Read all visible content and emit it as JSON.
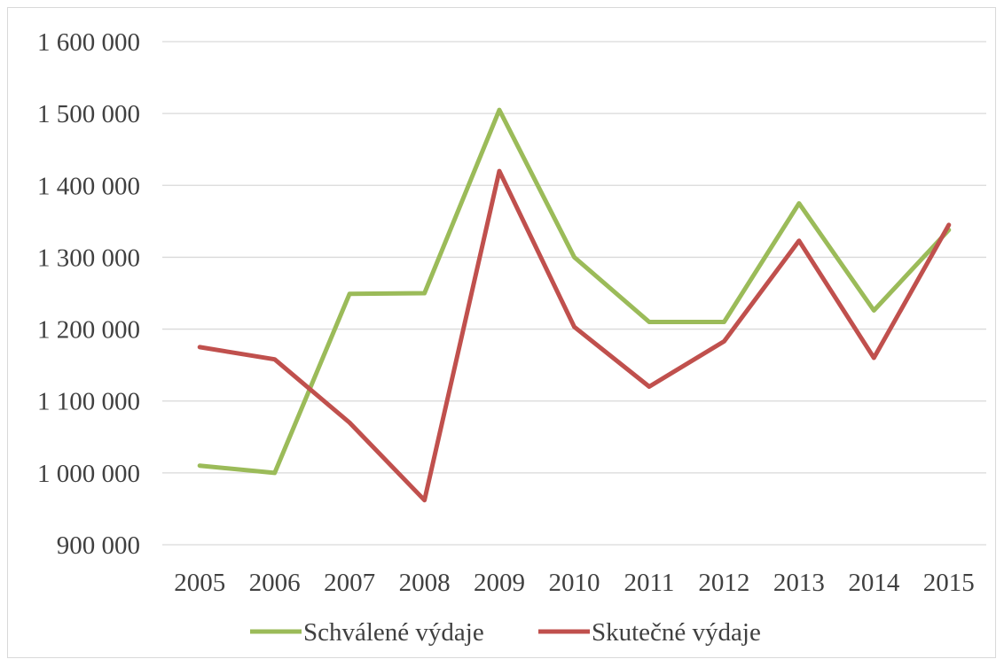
{
  "chart_data": {
    "type": "line",
    "categories": [
      "2005",
      "2006",
      "2007",
      "2008",
      "2009",
      "2010",
      "2011",
      "2012",
      "2013",
      "2014",
      "2015"
    ],
    "ylim": [
      900000,
      1600000
    ],
    "y_ticks": [
      900000,
      1000000,
      1100000,
      1200000,
      1300000,
      1400000,
      1500000,
      1600000
    ],
    "y_tick_labels": [
      "900 000",
      "1 000 000",
      "1 100 000",
      "1 200 000",
      "1 300 000",
      "1 400 000",
      "1 500 000",
      "1 600 000"
    ],
    "grid": "horizontal",
    "legend_position": "bottom",
    "series": [
      {
        "name": "Schválené výdaje",
        "color": "#9bbb59",
        "values": [
          1010000,
          1000000,
          1249000,
          1250000,
          1505000,
          1300000,
          1210000,
          1210000,
          1375000,
          1226000,
          1338000
        ]
      },
      {
        "name": "Skutečné výdaje",
        "color": "#c0504d",
        "values": [
          1175000,
          1158000,
          1070000,
          962000,
          1420000,
          1203000,
          1120000,
          1183000,
          1323000,
          1160000,
          1345000
        ]
      }
    ]
  }
}
